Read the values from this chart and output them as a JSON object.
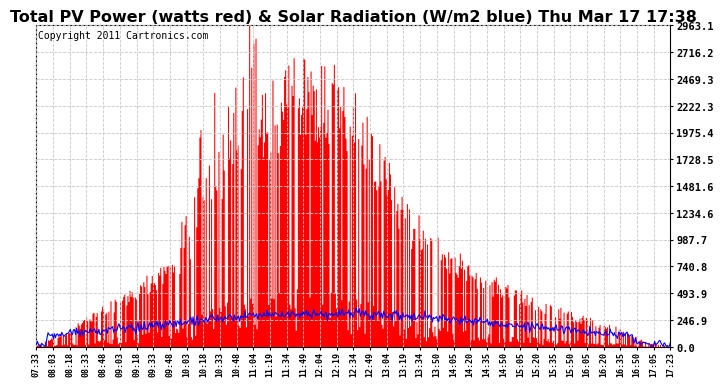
{
  "title": "Total PV Power (watts red) & Solar Radiation (W/m2 blue) Thu Mar 17 17:38",
  "copyright": "Copyright 2011 Cartronics.com",
  "ymin": 0.0,
  "ymax": 2963.1,
  "yticks": [
    0.0,
    246.9,
    493.9,
    740.8,
    987.7,
    1234.6,
    1481.6,
    1728.5,
    1975.4,
    2222.3,
    2469.3,
    2716.2,
    2963.1
  ],
  "background_color": "#ffffff",
  "grid_color": "#c8c8c8",
  "fill_color": "#ff0000",
  "line_color": "#0000ff",
  "title_fontsize": 11.5,
  "copyright_fontsize": 7,
  "tick_fontsize": 7.5,
  "x_tick_fontsize": 6.0,
  "x_labels": [
    "07:33",
    "08:03",
    "08:18",
    "08:33",
    "08:48",
    "09:03",
    "09:18",
    "09:33",
    "09:48",
    "10:03",
    "10:18",
    "10:33",
    "10:48",
    "11:04",
    "11:19",
    "11:34",
    "11:49",
    "12:04",
    "12:19",
    "12:34",
    "12:49",
    "13:04",
    "13:19",
    "13:34",
    "13:50",
    "14:05",
    "14:20",
    "14:35",
    "14:50",
    "15:05",
    "15:20",
    "15:35",
    "15:50",
    "16:05",
    "16:20",
    "16:35",
    "16:50",
    "17:05",
    "17:23"
  ]
}
